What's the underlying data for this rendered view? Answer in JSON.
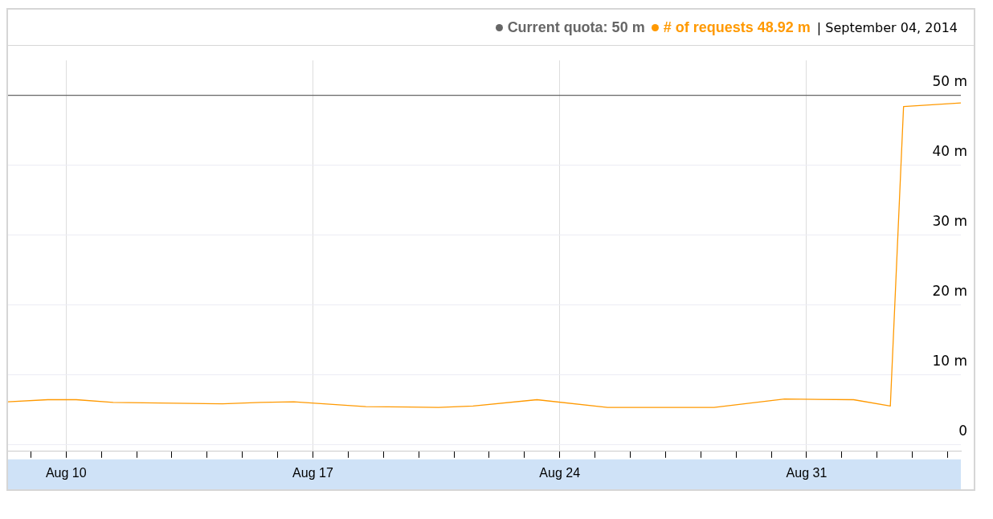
{
  "chart_data": {
    "type": "line",
    "legend": "top right",
    "grid": true,
    "marker": "none",
    "line_style": "solid",
    "annotations": [
      "| September 04, 2014"
    ],
    "xlim": [
      "2014-08-08T08:30",
      "2014-09-04T09:00"
    ],
    "xticks": [
      {
        "value": "2014-08-09",
        "label": null
      },
      {
        "value": "2014-08-10",
        "label": "Aug 10"
      },
      {
        "value": "2014-08-11",
        "label": null
      },
      {
        "value": "2014-08-12",
        "label": null
      },
      {
        "value": "2014-08-13",
        "label": null
      },
      {
        "value": "2014-08-14",
        "label": null
      },
      {
        "value": "2014-08-15",
        "label": null
      },
      {
        "value": "2014-08-16",
        "label": null
      },
      {
        "value": "2014-08-17",
        "label": "Aug 17"
      },
      {
        "value": "2014-08-18",
        "label": null
      },
      {
        "value": "2014-08-19",
        "label": null
      },
      {
        "value": "2014-08-20",
        "label": null
      },
      {
        "value": "2014-08-21",
        "label": null
      },
      {
        "value": "2014-08-22",
        "label": null
      },
      {
        "value": "2014-08-23",
        "label": null
      },
      {
        "value": "2014-08-24",
        "label": "Aug 24"
      },
      {
        "value": "2014-08-25",
        "label": null
      },
      {
        "value": "2014-08-26",
        "label": null
      },
      {
        "value": "2014-08-27",
        "label": null
      },
      {
        "value": "2014-08-28",
        "label": null
      },
      {
        "value": "2014-08-29",
        "label": null
      },
      {
        "value": "2014-08-30",
        "label": null
      },
      {
        "value": "2014-08-31",
        "label": "Aug 31"
      },
      {
        "value": "2014-09-01",
        "label": null
      },
      {
        "value": "2014-09-02",
        "label": null
      },
      {
        "value": "2014-09-03",
        "label": null
      },
      {
        "value": "2014-09-04",
        "label": null
      }
    ],
    "ylim": [
      -1,
      55
    ],
    "yticks": [
      0,
      {
        "value": 10,
        "label": "10 m"
      },
      {
        "value": 20,
        "label": "20 m"
      },
      {
        "value": 30,
        "label": "30 m"
      },
      {
        "value": 40,
        "label": "40 m"
      },
      {
        "value": 50,
        "label": "50 m"
      }
    ],
    "series": [
      {
        "name": "Current quota: 50 m",
        "color": "#666666",
        "x": [
          "2014-08-08T08:30",
          "2014-09-04T09:00"
        ],
        "values": [
          50,
          50
        ]
      },
      {
        "name": "# of requests 48.92 m",
        "color": "#ff9900",
        "x": [
          "2014-08-08T08:30",
          "2014-08-09T11:30",
          "2014-08-10T07:00",
          "2014-08-11T08:00",
          "2014-08-14T10:30",
          "2014-08-15T12:30",
          "2014-08-16T11:00",
          "2014-08-18T12:00",
          "2014-08-20T13:30",
          "2014-08-21T13:00",
          "2014-08-23T08:30",
          "2014-08-25T08:30",
          "2014-08-28T09:00",
          "2014-08-30T09:00",
          "2014-09-01T08:00",
          "2014-09-02T09:00",
          "2014-09-02T18:00",
          "2014-09-04T09:00"
        ],
        "values": [
          6.1,
          6.4,
          6.4,
          6.0,
          5.8,
          6.0,
          6.1,
          5.4,
          5.3,
          5.5,
          6.4,
          5.3,
          5.3,
          6.5,
          6.4,
          5.5,
          48.4,
          48.92
        ]
      }
    ]
  }
}
